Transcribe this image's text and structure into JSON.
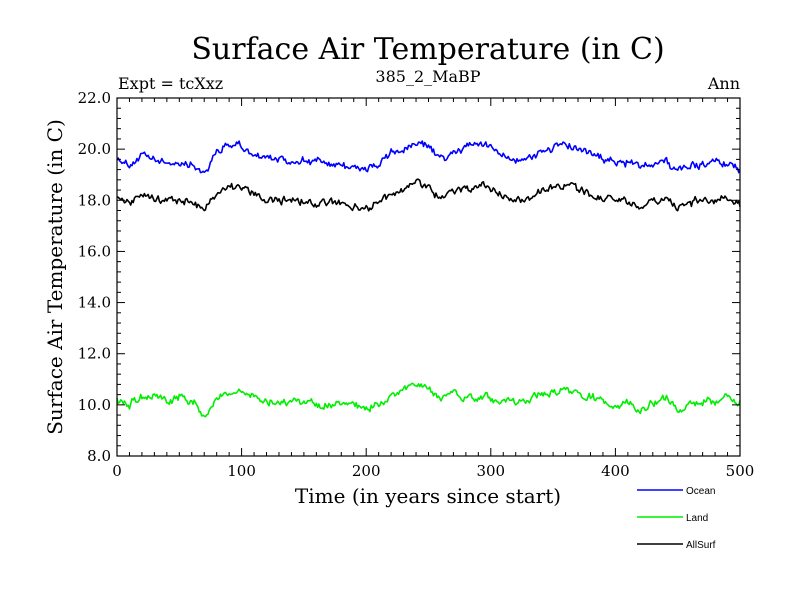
{
  "chart_data": {
    "type": "line",
    "title": "Surface Air Temperature (in C)",
    "subtitle_left": "Expt = tcXxz",
    "subtitle_center": "385_2_MaBP",
    "subtitle_right": "Ann",
    "xlabel": "Time (in years since start)",
    "ylabel": "Surface Air Temperature (in C)",
    "xlim": [
      0,
      500
    ],
    "ylim": [
      8.0,
      22.0
    ],
    "xticks": [
      0,
      100,
      200,
      300,
      400,
      500
    ],
    "xtick_labels": [
      "0",
      "100",
      "200",
      "300",
      "400",
      "500"
    ],
    "yticks": [
      8.0,
      10.0,
      12.0,
      14.0,
      16.0,
      18.0,
      20.0,
      22.0
    ],
    "ytick_labels": [
      "8.0",
      "10.0",
      "12.0",
      "14.0",
      "16.0",
      "18.0",
      "20.0",
      "22.0"
    ],
    "legend_position": "bottom-right, outside plot",
    "series": [
      {
        "name": "Ocean",
        "color": "#0000ff",
        "x": [
          0,
          10,
          20,
          30,
          40,
          50,
          60,
          70,
          80,
          90,
          100,
          110,
          120,
          130,
          140,
          150,
          160,
          170,
          180,
          190,
          200,
          210,
          220,
          230,
          240,
          250,
          260,
          270,
          280,
          290,
          300,
          310,
          320,
          330,
          340,
          350,
          360,
          370,
          380,
          390,
          400,
          410,
          420,
          430,
          440,
          450,
          460,
          470,
          480,
          490,
          500
        ],
        "values": [
          19.7,
          19.4,
          19.7,
          19.6,
          19.4,
          19.5,
          19.4,
          19.1,
          19.9,
          20.2,
          20.1,
          19.8,
          19.6,
          19.6,
          19.5,
          19.6,
          19.5,
          19.4,
          19.4,
          19.3,
          19.2,
          19.4,
          19.8,
          20.0,
          20.2,
          20.1,
          19.6,
          19.8,
          20.1,
          20.2,
          20.1,
          19.8,
          19.6,
          19.6,
          19.9,
          20.1,
          20.2,
          20.0,
          19.8,
          19.6,
          19.5,
          19.5,
          19.3,
          19.5,
          19.6,
          19.1,
          19.4,
          19.4,
          19.5,
          19.5,
          19.2
        ]
      },
      {
        "name": "Land",
        "color": "#00ee00",
        "x": [
          0,
          10,
          20,
          30,
          40,
          50,
          60,
          70,
          80,
          90,
          100,
          110,
          120,
          130,
          140,
          150,
          160,
          170,
          180,
          190,
          200,
          210,
          220,
          230,
          240,
          250,
          260,
          270,
          280,
          290,
          300,
          310,
          320,
          330,
          340,
          350,
          360,
          370,
          380,
          390,
          400,
          410,
          420,
          430,
          440,
          450,
          460,
          470,
          480,
          490,
          500
        ],
        "values": [
          10.3,
          10.0,
          10.3,
          10.4,
          10.2,
          10.3,
          10.1,
          9.6,
          10.2,
          10.5,
          10.6,
          10.2,
          10.1,
          10.0,
          10.1,
          10.1,
          10.0,
          10.0,
          10.1,
          10.0,
          9.8,
          10.0,
          10.3,
          10.6,
          10.8,
          10.6,
          10.3,
          10.5,
          10.3,
          10.2,
          10.3,
          10.2,
          10.1,
          10.2,
          10.4,
          10.5,
          10.6,
          10.4,
          10.3,
          10.1,
          10.0,
          10.0,
          9.8,
          10.1,
          10.3,
          9.8,
          10.1,
          10.2,
          10.1,
          10.3,
          10.1
        ]
      },
      {
        "name": "AllSurf",
        "color": "#000000",
        "x": [
          0,
          10,
          20,
          30,
          40,
          50,
          60,
          70,
          80,
          90,
          100,
          110,
          120,
          130,
          140,
          150,
          160,
          170,
          180,
          190,
          200,
          210,
          220,
          230,
          240,
          250,
          260,
          270,
          280,
          290,
          300,
          310,
          320,
          330,
          340,
          350,
          360,
          370,
          380,
          390,
          400,
          410,
          420,
          430,
          440,
          450,
          460,
          470,
          480,
          490,
          500
        ],
        "values": [
          18.2,
          17.9,
          18.2,
          18.1,
          18.0,
          18.0,
          17.9,
          17.6,
          18.3,
          18.6,
          18.5,
          18.2,
          18.0,
          18.0,
          18.0,
          18.0,
          17.9,
          17.9,
          17.9,
          17.8,
          17.7,
          17.9,
          18.2,
          18.5,
          18.7,
          18.5,
          18.1,
          18.3,
          18.5,
          18.6,
          18.5,
          18.2,
          18.0,
          18.1,
          18.4,
          18.5,
          18.6,
          18.4,
          18.2,
          18.1,
          18.0,
          18.0,
          17.8,
          18.0,
          18.1,
          17.6,
          17.9,
          18.0,
          18.0,
          18.1,
          17.8
        ]
      }
    ]
  }
}
